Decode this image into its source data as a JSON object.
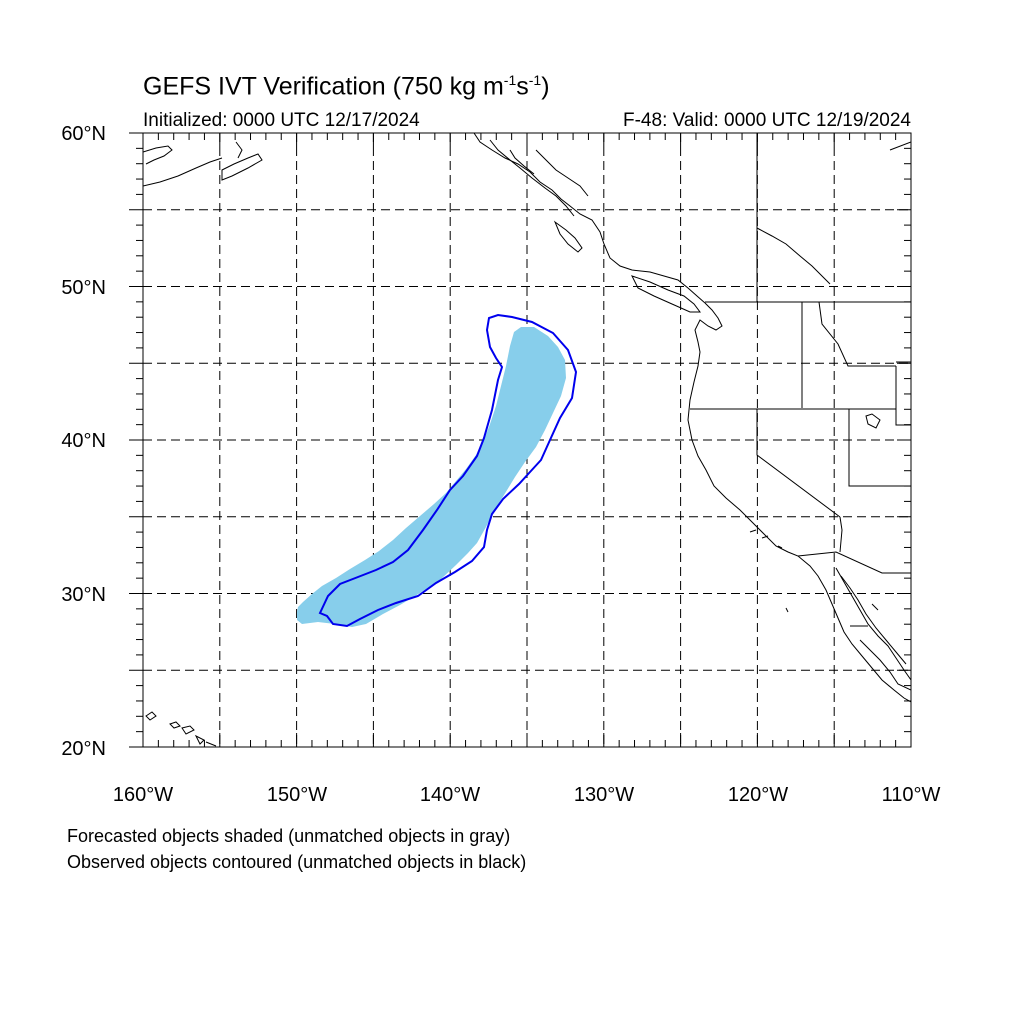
{
  "title": {
    "prefix": "GEFS IVT Verification (750 kg m",
    "exp1": "-1",
    "mid": "s",
    "exp2": "-1",
    "suffix": ")"
  },
  "subtitle_left": "Initialized: 0000 UTC 12/17/2024",
  "subtitle_right": "F-48: Valid: 0000 UTC 12/19/2024",
  "lat_labels": [
    "60°N",
    "50°N",
    "40°N",
    "30°N",
    "20°N"
  ],
  "lon_labels": [
    "160°W",
    "150°W",
    "140°W",
    "130°W",
    "120°W",
    "110°W"
  ],
  "footnotes": [
    "Forecasted objects shaded (unmatched objects in gray)",
    "Observed objects contoured (unmatched objects in black)"
  ],
  "colors": {
    "forecast_fill": "#87ceeb",
    "observed_contour": "#0000ee",
    "coastline": "#000000",
    "grid": "#000000"
  }
}
